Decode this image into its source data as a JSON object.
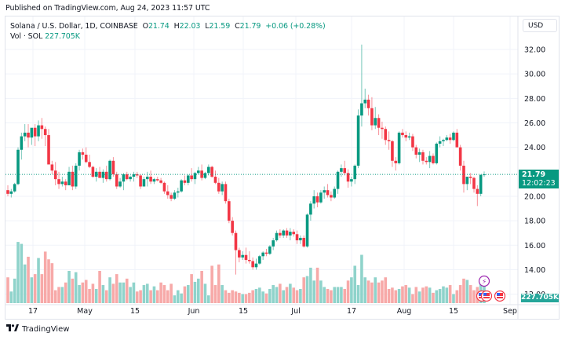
{
  "header": {
    "published": "Published on TradingView.com, Aug 24, 2023 11:57 UTC"
  },
  "legend": {
    "symbol": "Solana / U.S. Dollar, 1D, COINBASE",
    "open_label": "O",
    "open": "21.74",
    "high_label": "H",
    "high": "22.03",
    "low_label": "L",
    "low": "21.59",
    "close_label": "C",
    "close": "21.79",
    "change": "+0.06",
    "change_pct": "(+0.28%)",
    "volume_label": "Vol · SOL",
    "volume": "227.705K"
  },
  "price_axis": {
    "currency_button": "USD",
    "ticks": [
      "32.00",
      "30.00",
      "28.00",
      "26.00",
      "24.00",
      "20.00",
      "18.00",
      "16.00",
      "14.00",
      "12.00"
    ],
    "last_price": "21.79",
    "countdown": "12:02:23",
    "volume_tag": "227.705K"
  },
  "time_axis": {
    "ticks": [
      "17",
      "May",
      "15",
      "Jun",
      "15",
      "Jul",
      "17",
      "Aug",
      "15",
      "Sep"
    ]
  },
  "footer": {
    "brand": "TradingView",
    "brand_mark": "17"
  },
  "colors": {
    "up": "#089981",
    "down": "#f23645",
    "volume_up": "#8fd3cb",
    "volume_down": "#f7a9a8",
    "grid": "#f0f3fa",
    "last_price_line": "#089981"
  },
  "chart_data": {
    "type": "candlestick",
    "title": "Solana / U.S. Dollar, 1D, COINBASE",
    "xlabel": "",
    "ylabel": "USD",
    "ylim": [
      12,
      33
    ],
    "grid": true,
    "x_tick_labels": [
      "17",
      "May",
      "15",
      "Jun",
      "15",
      "Jul",
      "17",
      "Aug",
      "15",
      "Sep"
    ],
    "y_tick_labels": [
      "12.00",
      "14.00",
      "16.00",
      "18.00",
      "20.00",
      "24.00",
      "26.00",
      "28.00",
      "30.00",
      "32.00"
    ],
    "last": {
      "open": 21.74,
      "high": 22.03,
      "low": 21.59,
      "close": 21.79,
      "change": 0.06,
      "change_pct": 0.28,
      "volume": "227.705K"
    },
    "date_range": [
      "2023-04-10",
      "2023-08-24"
    ],
    "ohlc": [
      [
        20.5,
        20.9,
        20.0,
        20.2
      ],
      [
        20.2,
        20.6,
        19.9,
        20.4
      ],
      [
        20.4,
        21.1,
        20.3,
        21.0
      ],
      [
        21.0,
        24.0,
        20.9,
        23.8
      ],
      [
        23.8,
        25.2,
        23.0,
        24.9
      ],
      [
        24.9,
        25.9,
        24.5,
        25.2
      ],
      [
        25.2,
        25.9,
        24.0,
        24.8
      ],
      [
        24.8,
        25.5,
        24.2,
        25.6
      ],
      [
        25.6,
        25.9,
        24.1,
        24.9
      ],
      [
        24.9,
        26.2,
        24.5,
        25.8
      ],
      [
        25.8,
        26.4,
        24.7,
        25.5
      ],
      [
        25.5,
        25.7,
        24.1,
        25.0
      ],
      [
        25.0,
        25.5,
        22.9,
        22.6
      ],
      [
        22.6,
        22.9,
        21.8,
        22.1
      ],
      [
        22.1,
        22.8,
        20.9,
        21.4
      ],
      [
        21.4,
        22.0,
        20.6,
        21.0
      ],
      [
        21.0,
        21.6,
        20.8,
        21.2
      ],
      [
        21.2,
        21.4,
        20.5,
        20.9
      ],
      [
        20.9,
        22.4,
        20.9,
        22.0
      ],
      [
        22.0,
        22.5,
        20.5,
        20.8
      ],
      [
        20.8,
        22.7,
        20.6,
        22.5
      ],
      [
        22.5,
        23.8,
        22.1,
        23.6
      ],
      [
        23.6,
        23.9,
        23.0,
        23.4
      ],
      [
        23.4,
        24.0,
        22.7,
        22.8
      ],
      [
        22.8,
        23.4,
        22.3,
        22.4
      ],
      [
        22.4,
        22.5,
        21.5,
        21.6
      ],
      [
        21.6,
        22.3,
        21.2,
        22.0
      ],
      [
        22.0,
        22.4,
        21.5,
        21.5
      ],
      [
        21.5,
        22.2,
        21.1,
        22.0
      ],
      [
        22.0,
        22.5,
        21.2,
        21.4
      ],
      [
        21.4,
        23.0,
        21.3,
        22.9
      ],
      [
        22.9,
        23.2,
        21.6,
        21.8
      ],
      [
        21.8,
        22.0,
        20.6,
        20.8
      ],
      [
        20.8,
        21.5,
        20.7,
        21.2
      ],
      [
        21.2,
        21.9,
        20.5,
        21.8
      ],
      [
        21.8,
        22.0,
        21.3,
        21.4
      ],
      [
        21.4,
        21.7,
        21.2,
        21.6
      ],
      [
        21.6,
        22.0,
        21.2,
        21.8
      ],
      [
        21.8,
        22.0,
        21.5,
        21.7
      ],
      [
        21.7,
        21.8,
        20.6,
        20.8
      ],
      [
        20.8,
        21.6,
        20.8,
        21.4
      ],
      [
        21.4,
        22.0,
        20.8,
        21.6
      ],
      [
        21.6,
        22.1,
        21.0,
        21.2
      ],
      [
        21.2,
        21.5,
        21.0,
        21.4
      ],
      [
        21.4,
        21.6,
        21.2,
        21.3
      ],
      [
        21.3,
        21.5,
        21.0,
        21.1
      ],
      [
        21.1,
        21.2,
        20.2,
        20.4
      ],
      [
        20.4,
        20.9,
        19.8,
        20.1
      ],
      [
        20.1,
        20.3,
        19.6,
        19.8
      ],
      [
        19.8,
        20.5,
        19.7,
        20.3
      ],
      [
        20.3,
        20.7,
        19.9,
        20.4
      ],
      [
        20.4,
        21.4,
        20.3,
        21.3
      ],
      [
        21.3,
        21.7,
        20.9,
        21.1
      ],
      [
        21.1,
        21.8,
        20.9,
        21.7
      ],
      [
        21.7,
        22.3,
        21.2,
        21.4
      ],
      [
        21.4,
        22.0,
        21.0,
        21.9
      ],
      [
        21.9,
        22.4,
        21.8,
        22.1
      ],
      [
        22.1,
        22.6,
        21.3,
        21.5
      ],
      [
        21.5,
        22.0,
        21.4,
        21.9
      ],
      [
        21.9,
        22.6,
        21.7,
        22.4
      ],
      [
        22.4,
        22.5,
        21.5,
        21.6
      ],
      [
        21.6,
        22.1,
        21.0,
        21.1
      ],
      [
        21.1,
        21.5,
        20.2,
        20.4
      ],
      [
        20.4,
        21.2,
        20.1,
        21.0
      ],
      [
        21.0,
        21.2,
        19.4,
        19.6
      ],
      [
        19.6,
        19.8,
        17.8,
        18.0
      ],
      [
        18.0,
        18.3,
        16.8,
        17.0
      ],
      [
        17.0,
        17.2,
        13.6,
        15.6
      ],
      [
        15.6,
        15.8,
        14.6,
        15.0
      ],
      [
        15.0,
        15.5,
        14.8,
        15.2
      ],
      [
        15.2,
        15.8,
        14.5,
        14.8
      ],
      [
        14.8,
        15.5,
        14.5,
        14.7
      ],
      [
        14.7,
        15.0,
        14.0,
        14.2
      ],
      [
        14.2,
        14.9,
        14.0,
        14.5
      ],
      [
        14.5,
        15.2,
        14.4,
        15.1
      ],
      [
        15.1,
        15.5,
        14.8,
        15.4
      ],
      [
        15.4,
        15.7,
        15.1,
        15.3
      ],
      [
        15.3,
        16.0,
        15.2,
        15.9
      ],
      [
        15.9,
        16.6,
        15.6,
        16.4
      ],
      [
        16.4,
        17.2,
        16.3,
        17.0
      ],
      [
        17.0,
        17.3,
        16.6,
        16.8
      ],
      [
        16.8,
        17.3,
        16.6,
        17.2
      ],
      [
        17.2,
        17.4,
        16.6,
        16.8
      ],
      [
        16.8,
        17.4,
        16.4,
        17.1
      ],
      [
        17.1,
        17.3,
        16.7,
        16.9
      ],
      [
        16.9,
        17.2,
        16.1,
        16.4
      ],
      [
        16.4,
        16.8,
        16.1,
        16.6
      ],
      [
        16.6,
        16.8,
        15.8,
        15.9
      ],
      [
        15.9,
        18.6,
        15.8,
        18.5
      ],
      [
        18.5,
        19.6,
        18.0,
        19.4
      ],
      [
        19.4,
        20.5,
        19.0,
        20.0
      ],
      [
        20.0,
        20.3,
        19.1,
        19.5
      ],
      [
        19.5,
        20.5,
        19.4,
        20.3
      ],
      [
        20.3,
        20.8,
        19.8,
        20.5
      ],
      [
        20.5,
        21.0,
        19.9,
        20.1
      ],
      [
        20.1,
        20.4,
        19.6,
        19.9
      ],
      [
        19.9,
        20.8,
        19.8,
        20.6
      ],
      [
        20.6,
        22.1,
        20.2,
        22.0
      ],
      [
        22.0,
        22.6,
        21.6,
        22.3
      ],
      [
        22.3,
        22.9,
        21.7,
        21.9
      ],
      [
        21.9,
        22.2,
        20.7,
        21.2
      ],
      [
        21.2,
        21.6,
        20.8,
        21.4
      ],
      [
        21.4,
        22.6,
        21.0,
        22.5
      ],
      [
        22.5,
        27.1,
        22.3,
        26.6
      ],
      [
        26.6,
        32.4,
        25.7,
        27.6
      ],
      [
        27.6,
        28.8,
        27.2,
        27.9
      ],
      [
        27.9,
        28.3,
        26.6,
        27.2
      ],
      [
        27.2,
        28.1,
        25.4,
        25.8
      ],
      [
        25.8,
        27.3,
        25.5,
        26.4
      ],
      [
        26.4,
        26.7,
        25.0,
        25.6
      ],
      [
        25.6,
        26.1,
        24.7,
        25.5
      ],
      [
        25.5,
        25.7,
        24.2,
        24.6
      ],
      [
        24.6,
        25.3,
        23.8,
        24.5
      ],
      [
        24.5,
        24.6,
        22.4,
        22.9
      ],
      [
        22.9,
        23.2,
        22.1,
        22.7
      ],
      [
        22.7,
        25.3,
        22.6,
        25.2
      ],
      [
        25.2,
        25.5,
        24.8,
        25.0
      ],
      [
        25.0,
        25.3,
        24.5,
        24.8
      ],
      [
        24.8,
        25.2,
        24.6,
        24.9
      ],
      [
        24.9,
        25.1,
        23.7,
        24.0
      ],
      [
        24.0,
        24.2,
        23.1,
        23.4
      ],
      [
        23.4,
        23.9,
        22.8,
        23.6
      ],
      [
        23.6,
        23.8,
        22.6,
        22.9
      ],
      [
        22.9,
        23.2,
        22.6,
        22.8
      ],
      [
        22.8,
        23.7,
        22.3,
        23.3
      ],
      [
        23.3,
        23.5,
        22.6,
        22.7
      ],
      [
        22.7,
        24.4,
        22.6,
        24.3
      ],
      [
        24.3,
        24.9,
        24.0,
        24.5
      ],
      [
        24.5,
        24.7,
        24.1,
        24.6
      ],
      [
        24.6,
        25.0,
        24.5,
        24.8
      ],
      [
        24.8,
        25.1,
        24.3,
        24.6
      ],
      [
        24.6,
        25.3,
        24.5,
        25.2
      ],
      [
        25.2,
        25.5,
        24.4,
        24.0
      ],
      [
        24.0,
        24.2,
        22.1,
        22.5
      ],
      [
        22.5,
        22.9,
        20.3,
        21.0
      ],
      [
        21.0,
        21.6,
        20.5,
        21.6
      ],
      [
        21.6,
        21.9,
        21.0,
        21.5
      ],
      [
        21.5,
        21.6,
        20.3,
        20.6
      ],
      [
        20.6,
        20.9,
        19.2,
        20.2
      ],
      [
        20.2,
        21.8,
        20.0,
        21.74
      ],
      [
        21.74,
        22.03,
        21.59,
        21.79
      ]
    ],
    "volume": [
      40,
      18,
      38,
      95,
      92,
      60,
      72,
      40,
      45,
      70,
      45,
      80,
      68,
      62,
      20,
      25,
      25,
      32,
      50,
      38,
      48,
      28,
      32,
      36,
      22,
      30,
      22,
      50,
      28,
      20,
      40,
      30,
      45,
      32,
      32,
      38,
      25,
      32,
      18,
      20,
      28,
      30,
      20,
      26,
      20,
      32,
      28,
      20,
      30,
      12,
      20,
      15,
      26,
      28,
      45,
      33,
      38,
      50,
      30,
      12,
      58,
      28,
      60,
      28,
      20,
      16,
      20,
      18,
      16,
      14,
      14,
      16,
      20,
      22,
      24,
      18,
      15,
      22,
      28,
      25,
      30,
      20,
      25,
      30,
      24,
      20,
      22,
      40,
      42,
      55,
      35,
      55,
      35,
      25,
      22,
      20,
      25,
      25,
      25,
      22,
      35,
      40,
      58,
      28,
      75,
      40,
      35,
      32,
      40,
      32,
      35,
      40,
      22,
      24,
      20,
      22,
      26,
      28,
      24,
      14,
      25,
      18,
      24,
      26,
      24,
      16,
      20,
      22,
      26,
      24,
      28,
      14,
      20,
      28,
      38,
      36,
      28,
      20,
      25,
      30,
      32
    ],
    "volume_labels_visible": "227.705K"
  }
}
